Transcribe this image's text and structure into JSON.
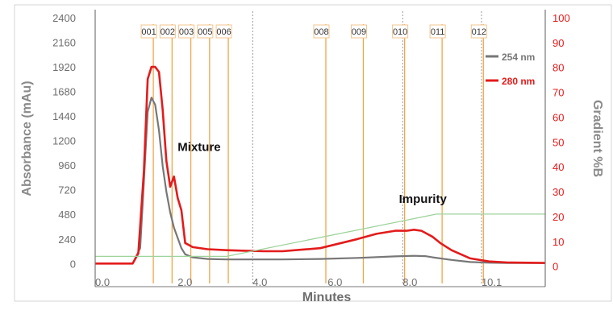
{
  "chart_data": {
    "type": "line",
    "xlabel": "Minutes",
    "ylabel_left": "Absorbance (mAu)",
    "ylabel_right": "Gradient %B",
    "xlim": [
      0,
      12
    ],
    "ylim_left": [
      -100,
      2400
    ],
    "ylim_right": [
      -3,
      100
    ],
    "x_ticks": [
      {
        "value": 0,
        "label": "0.0"
      },
      {
        "value": 2.2,
        "label": "2.0"
      },
      {
        "value": 4.2,
        "label": "4.0"
      },
      {
        "value": 6.2,
        "label": "6.0"
      },
      {
        "value": 8.2,
        "label": "8.0"
      },
      {
        "value": 10.3,
        "label": "10.1"
      }
    ],
    "y_ticks_left": [
      0,
      240,
      480,
      720,
      960,
      1200,
      1440,
      1680,
      1920,
      2160,
      2400
    ],
    "y_ticks_right": [
      0,
      10,
      20,
      30,
      40,
      50,
      60,
      70,
      80,
      90,
      100
    ],
    "legend_position": "top-right",
    "series": [
      {
        "name": "254 nm",
        "color": "#777777",
        "axis": "left",
        "x": [
          0,
          1.0,
          1.2,
          1.3,
          1.4,
          1.5,
          1.6,
          1.7,
          1.8,
          1.9,
          2.0,
          2.1,
          2.2,
          2.3,
          2.4,
          2.6,
          3.0,
          3.5,
          4.0,
          5.0,
          6.0,
          7.0,
          8.0,
          8.5,
          8.8,
          9.0,
          9.5,
          10.0,
          10.5,
          11.0,
          12.0
        ],
        "y": [
          0,
          0,
          150,
          800,
          1480,
          1620,
          1550,
          1300,
          950,
          700,
          500,
          350,
          250,
          150,
          90,
          60,
          45,
          40,
          40,
          40,
          45,
          55,
          70,
          75,
          72,
          60,
          35,
          15,
          8,
          5,
          5
        ]
      },
      {
        "name": "280 nm",
        "color": "#e31b1b",
        "axis": "left",
        "x": [
          0,
          1.0,
          1.15,
          1.3,
          1.4,
          1.5,
          1.6,
          1.7,
          1.8,
          1.9,
          2.0,
          2.1,
          2.2,
          2.3,
          2.4,
          2.6,
          3.0,
          3.5,
          4.0,
          4.5,
          5.0,
          5.5,
          6.0,
          7.0,
          7.5,
          8.0,
          8.3,
          8.5,
          8.7,
          8.8,
          9.0,
          9.2,
          9.5,
          10.0,
          10.5,
          11.0,
          12.0
        ],
        "y": [
          0,
          0,
          100,
          900,
          1800,
          1920,
          1920,
          1870,
          1500,
          1000,
          750,
          850,
          640,
          520,
          200,
          160,
          140,
          130,
          125,
          120,
          120,
          135,
          150,
          240,
          290,
          320,
          320,
          330,
          320,
          300,
          260,
          200,
          130,
          50,
          20,
          10,
          5
        ]
      },
      {
        "name": "Gradient",
        "color": "#9ed39c",
        "axis": "right",
        "x": [
          0,
          3.5,
          9.1,
          12
        ],
        "y": [
          4,
          4,
          21,
          21
        ]
      }
    ],
    "fractions": [
      {
        "label": "001",
        "x": 1.55
      },
      {
        "label": "002",
        "x": 2.05
      },
      {
        "label": "003",
        "x": 2.55
      },
      {
        "label": "005",
        "x": 3.05
      },
      {
        "label": "006",
        "x": 3.55
      },
      {
        "label": "008",
        "x": 6.15
      },
      {
        "label": "009",
        "x": 7.15
      },
      {
        "label": "010",
        "x": 8.25
      },
      {
        "label": "011",
        "x": 9.25
      },
      {
        "label": "012",
        "x": 10.35
      }
    ],
    "grid_lines_x": [
      4.2,
      8.2,
      10.3
    ],
    "annotations": [
      {
        "text": "Mixture",
        "x": 2.2,
        "y": 1100
      },
      {
        "text": "Impurity",
        "x": 8.1,
        "y": 590
      }
    ]
  }
}
